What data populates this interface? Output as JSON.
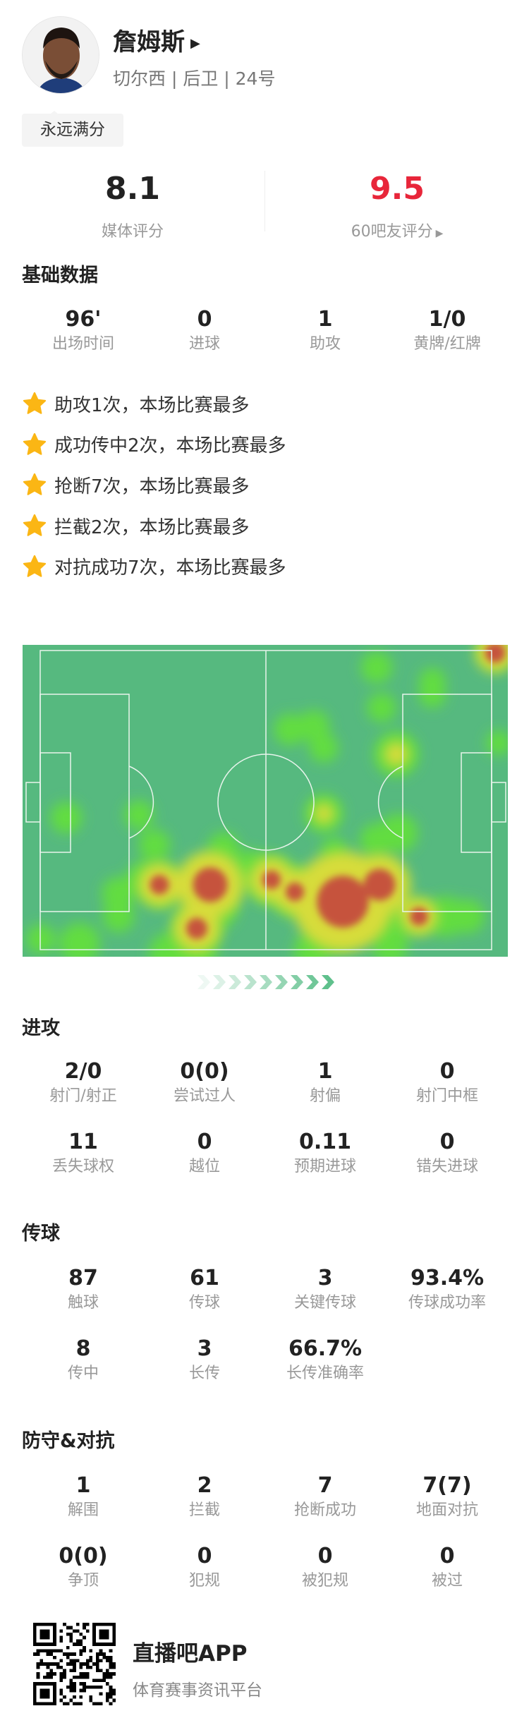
{
  "player": {
    "name": "詹姆斯",
    "info": "切尔西 | 后卫 | 24号",
    "tag": "永远满分"
  },
  "ratings": {
    "media": {
      "value": "8.1",
      "label": "媒体评分"
    },
    "fans": {
      "value": "9.5",
      "label": "60吧友评分",
      "color": "#e8263a"
    }
  },
  "basic": {
    "title": "基础数据",
    "stats": [
      {
        "v": "96'",
        "l": "出场时间"
      },
      {
        "v": "0",
        "l": "进球"
      },
      {
        "v": "1",
        "l": "助攻"
      },
      {
        "v": "1/0",
        "l": "黄牌/红牌"
      }
    ]
  },
  "highlights": [
    "助攻1次，本场比赛最多",
    "成功传中2次，本场比赛最多",
    "抢断7次，本场比赛最多",
    "拦截2次，本场比赛最多",
    "对抗成功7次，本场比赛最多"
  ],
  "attack": {
    "title": "进攻",
    "stats": [
      {
        "v": "2/0",
        "l": "射门/射正"
      },
      {
        "v": "0(0)",
        "l": "尝试过人"
      },
      {
        "v": "1",
        "l": "射偏"
      },
      {
        "v": "0",
        "l": "射门中框"
      },
      {
        "v": "11",
        "l": "丢失球权"
      },
      {
        "v": "0",
        "l": "越位"
      },
      {
        "v": "0.11",
        "l": "预期进球"
      },
      {
        "v": "0",
        "l": "错失进球"
      }
    ]
  },
  "passing": {
    "title": "传球",
    "stats": [
      {
        "v": "87",
        "l": "触球"
      },
      {
        "v": "61",
        "l": "传球"
      },
      {
        "v": "3",
        "l": "关键传球"
      },
      {
        "v": "93.4%",
        "l": "传球成功率"
      },
      {
        "v": "8",
        "l": "传中"
      },
      {
        "v": "3",
        "l": "长传"
      },
      {
        "v": "66.7%",
        "l": "长传准确率"
      }
    ]
  },
  "defense": {
    "title": "防守&对抗",
    "stats": [
      {
        "v": "1",
        "l": "解围"
      },
      {
        "v": "2",
        "l": "拦截"
      },
      {
        "v": "7",
        "l": "抢断成功"
      },
      {
        "v": "7(7)",
        "l": "地面对抗"
      },
      {
        "v": "0(0)",
        "l": "争顶"
      },
      {
        "v": "0",
        "l": "犯规"
      },
      {
        "v": "0",
        "l": "被犯规"
      },
      {
        "v": "0",
        "l": "被过"
      }
    ]
  },
  "footer": {
    "app": "直播吧APP",
    "tagline": "体育赛事资讯平台"
  },
  "colors": {
    "pitch": "#56b97f",
    "star": "#fbb614",
    "direction_arrow": "#5cbf8a"
  },
  "icons": {
    "star": "star-icon",
    "play": "triangle-right-icon",
    "direction": "chevron-right-icon"
  }
}
